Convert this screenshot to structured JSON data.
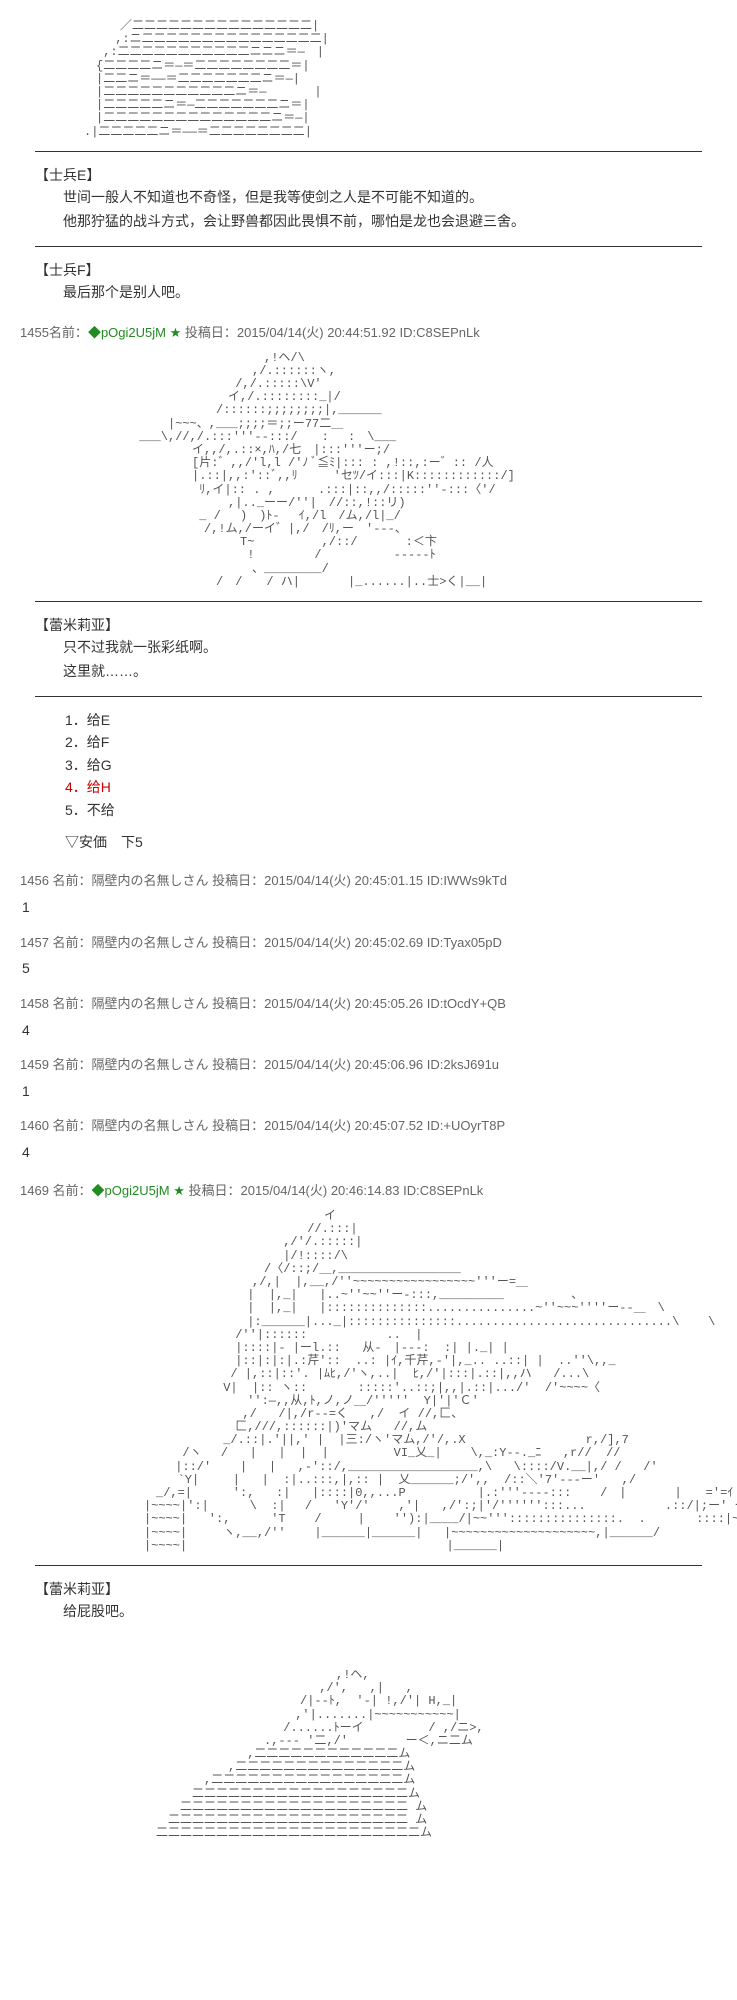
{
  "aa1": "　　　　　／二二二二二二二二二二二二二二二|\n　　　　 ,:ニ二二二二二二二二二二二二二二二|\n　　　 ,:二二二二二二二二二二二ニニニ＝―　|\n　　　{二二二二ニ＝―＝二二二二二二二二＝|\n　　　|二二ニ＝――＝二二二二二二二ニ＝―|\n　　　|二二二二二二二二二二二ニ＝―　　　　|\n　　　|二二二二二ニ＝―二二二二二二二ニ＝|\n　　　|二二二二二二二二二二二二二二ニ＝―|\n　　.|二二二二二ニ＝――＝二二二二二二二二|",
  "speaker1": "【士兵E】",
  "dialogue1a": "世间一般人不知道也不奇怪，但是我等使剑之人是不可能不知道的。",
  "dialogue1b": "他那狞猛的战斗方式，会让野兽都因此畏惧不前，哪怕是龙也会退避三舍。",
  "speaker2": "【士兵F】",
  "dialogue2": "最后那个是别人吧。",
  "post1455": {
    "num": "1455",
    "name_prefix": "名前：",
    "trip": "◆pOgi2U5jM",
    "star": "★",
    "date_prefix": " 投稿日：",
    "date": "2015/04/14(火) 20:44:51.92 ID:C8SEPnLk"
  },
  "aa2": "　　　　　　　　　　　　　　　　　,!ヘ/\\\n　　　　　　　　　　　　　　　　,/.::::::ヽ,\n　　　　　　　　　　　　　　 /,/.:::::\\V'\n　　　　　　　　　　　　　　イ,/.::::::::_|/\n　　　　　　　　　　　　　/::::::;;;;;;;;|,______\n　　　　　　　　　|~~~、,___;;;;＝;;ー77二＿\n　　　　　　 ___\\,//,/.:::'''--:::/　　:　 :　\\___\n　　　　　　　　　　　イ,,/,.::×,ﾊ,/七　|:::'''ー;/\n　　　　　　　　　　　[片:゛,,/'l,l /'ﾉ ﾞ≦ﾐ|::: : ,!::,:ー゛:: /人\n　　　　　　　　　　　|.::|,,:'::ﾞ,,ﾘ　　　'セﾂ/イ:::|K::::::::::::/]\n　　　　　　　　　　　 ﾘ,イ|:: . ,　　　 .:::|::,,/:::::''-:::〈'/\n　　　　　　　　　　　　　　,|.._ーー/''|　//::,!::リ)\n　　　　　　　　　　　 _ / 　)　)ﾄ-　 ｲ,/l　/ム,/l|_/\n　　　　　　　　　　　　/,!ム,/ーイ゛|,/　/ﾘ,ー　'---、\n　　　　　　　　　　　　　　　T~ 　　　　　,/::/　　　　:＜卞\n　　　　　　　　　　　　　　　 !　　　　　/　　　　　　-----ﾄ\n　　　　　　　　　　　　　　　　、________/\n　　　　　　　　　　　　　/　/　　/ ハ|　　　　|_......|..士>く|__|",
  "speaker3": "【蕾米莉亚】",
  "dialogue3a": "只不过我就一张彩纸啊。",
  "dialogue3b": "这里就……。",
  "options": {
    "o1": "1．给E",
    "o2": "2．给F",
    "o3": "3．给G",
    "o4": "4．给H",
    "o5": "5．不给"
  },
  "anka": "▽安価　下5",
  "replies": [
    {
      "h": "1456 名前：隔壁内の名無しさん 投稿日：2015/04/14(火) 20:45:01.15 ID:IWWs9kTd",
      "b": "1"
    },
    {
      "h": "1457 名前：隔壁内の名無しさん 投稿日：2015/04/14(火) 20:45:02.69 ID:Tyax05pD",
      "b": "5"
    },
    {
      "h": "1458 名前：隔壁内の名無しさん 投稿日：2015/04/14(火) 20:45:05.26 ID:tOcdY+QB",
      "b": "4"
    },
    {
      "h": "1459 名前：隔壁内の名無しさん 投稿日：2015/04/14(火) 20:45:06.96 ID:2ksJ691u",
      "b": "1"
    },
    {
      "h": "1460 名前：隔壁内の名無しさん 投稿日：2015/04/14(火) 20:45:07.52 ID:+UOyrT8P",
      "b": "4"
    }
  ],
  "post1469": {
    "num": "1469",
    "name_prefix": " 名前：",
    "trip": "◆pOgi2U5jM",
    "star": "★",
    "date_prefix": " 投稿日：",
    "date": "2015/04/14(火) 20:46:14.83 ID:C8SEPnLk"
  },
  "aa3": "　　　　　　　　　　　　　　　　　　　　　　イ\n　　　　　　　　　　　　　　　　　　　　 //.:::|\n　　　　　　　　　　　　　　　　　　 ,/'/.:::::|\n　　　　　　　　　　　　　　　　　　 |/!::::/\\\n　　　　　　　　　　　　　　　　　/〈/::;/＿,_________________\n　　　　　　　　　　　　　　　　,/,|  |,__,/''~~~~~~~~~~~~~~~~~'''ー=＿\n　　　　　　　　　　　　　　　 |  |,_|   |..~''~~''ー-:::,_________　　　　　 、\n　　　　　　　　　　　　　　　 |  |,_|   |::::::::::::::...............~''~~~''''ー--＿　\\\n　　　　　　　　　　　　　　　 |:______|..._|:::::::::::::::..............................\\    \\\n　　　　　　　　　　　　　　 /''|::::::           ..  |\n　　　　　　　　　　　　　　 |::::|- |ーl.::   从-　|---:  :| |._| |\n　　　　　　　　　　　　　　 |::|:|:|.:芹'::  ..: |ｲ,千芹,-'|,_.. ..::| |  ..''\\,,_\n　　　　　　　　　　　　　  / |,::|::'. |ﾑﾋ,/'ヽ,..|  ﾋ,/'|:::|.::|,,ハ   /...\\\n　　　　　　　　　　　　　 V|  |:: ヽ::       :::::'..::;|,,|.::|.../'  /'~~~~〈\n　　　　　　　　　　　　　　　 '':―,,从,ﾄ,ノ,ノ＿/'''''  Y|'|'Ｃ'\n　　　　　　　　　　　　　　  ,/   /|,/r--=く   ,/  イ //,匚、\n　　　　　　　　　　　　　　 匚,///,::::::|)'マム   //,ム\n　　　　　　　　　　　　　 _/.::|.'||,' |  |三:/ヽ'マム,/'/,.X　　　　　　　　　　r,/],7\n　　　　　　　　　  /ヽ　 /   |   |  |  |         VI_乂_|    \\,_:Y--._ﾆ   ,r//  //\n　　　　　　　　　 |::/'    |   |   ,-'::/,__________________,\\   \\::::/V.__|,/ /   /'\n　　　　　　　　   `Y|　   |   |  :|..:::,|,:: |  乂______;/',,  /::＼'7'---ー'   ,/\n　　　　　　　　_/,=| 　   ':,   :|   |::::|0,,...P          |.:'''----:::    /　|　　　　|　　='=ｲ\n　　　　　　　|~~~~|':|　    \\  :|　 /   'Y'/'    ,'|   ,/':;|'/'''''':::...           .::/|;ー' ー :/\n　　　　　　　|~~~~|   ':, 　   'T    /     |    ''):|____/|~~''':::::::::::::::.  .       ::::|~~~~~,_/\n　　　　　　　|~~~~|     ヽ,__,/''    |______|______|   |~~~~~~~~~~~~~~~~~~~~,|______/\n　　　　　　　|~~~~|                                    |______|",
  "speaker4": "【蕾米莉亚】",
  "dialogue4": "给屁股吧。",
  "aa4": "　　　　　　　　　　　　　　　　　　　　　　　,!ヘ,\n　　　　　　　　　　　　　　　　　　　　　 ,/',   ,|   ,\n　　　　　　　　　　　　　　　　　　　　/|--ﾄ,  '-| !,/'| H,_|\n　　　　　　　　　　　　　　　　　　　 ,'|.......|~~~~~~~~~~~|\n　　　　　　　　　　　　　　　　　　 /......ﾄーイ         / ,/ニ>,\n　　　　　　　　　　　　　　　　　.,--- '二,/'        ー＜,ニ二ム\n　　　　　　　　　　　　　　　 ,二二二二二二二二二二二二ム\n　　　　　　　　　　　　　　,二二二二二二二二二二二二二二ム\n　　　　　　　　　　　　,二二二二二二二二二二二二二二二二ム\n　　　　　　　　　　　二二二二二二二二二二二二二二二二二二ム\n　　　　　　　　　　二二二二二二二二二二二二二二二二二二二 ム\n　　　　　　　　　二二二二二二二二二二二二二二二二二二二二 ム\n　　　　　　　　二二二二二二二二二二二二二二二二二二二二二二ム"
}
